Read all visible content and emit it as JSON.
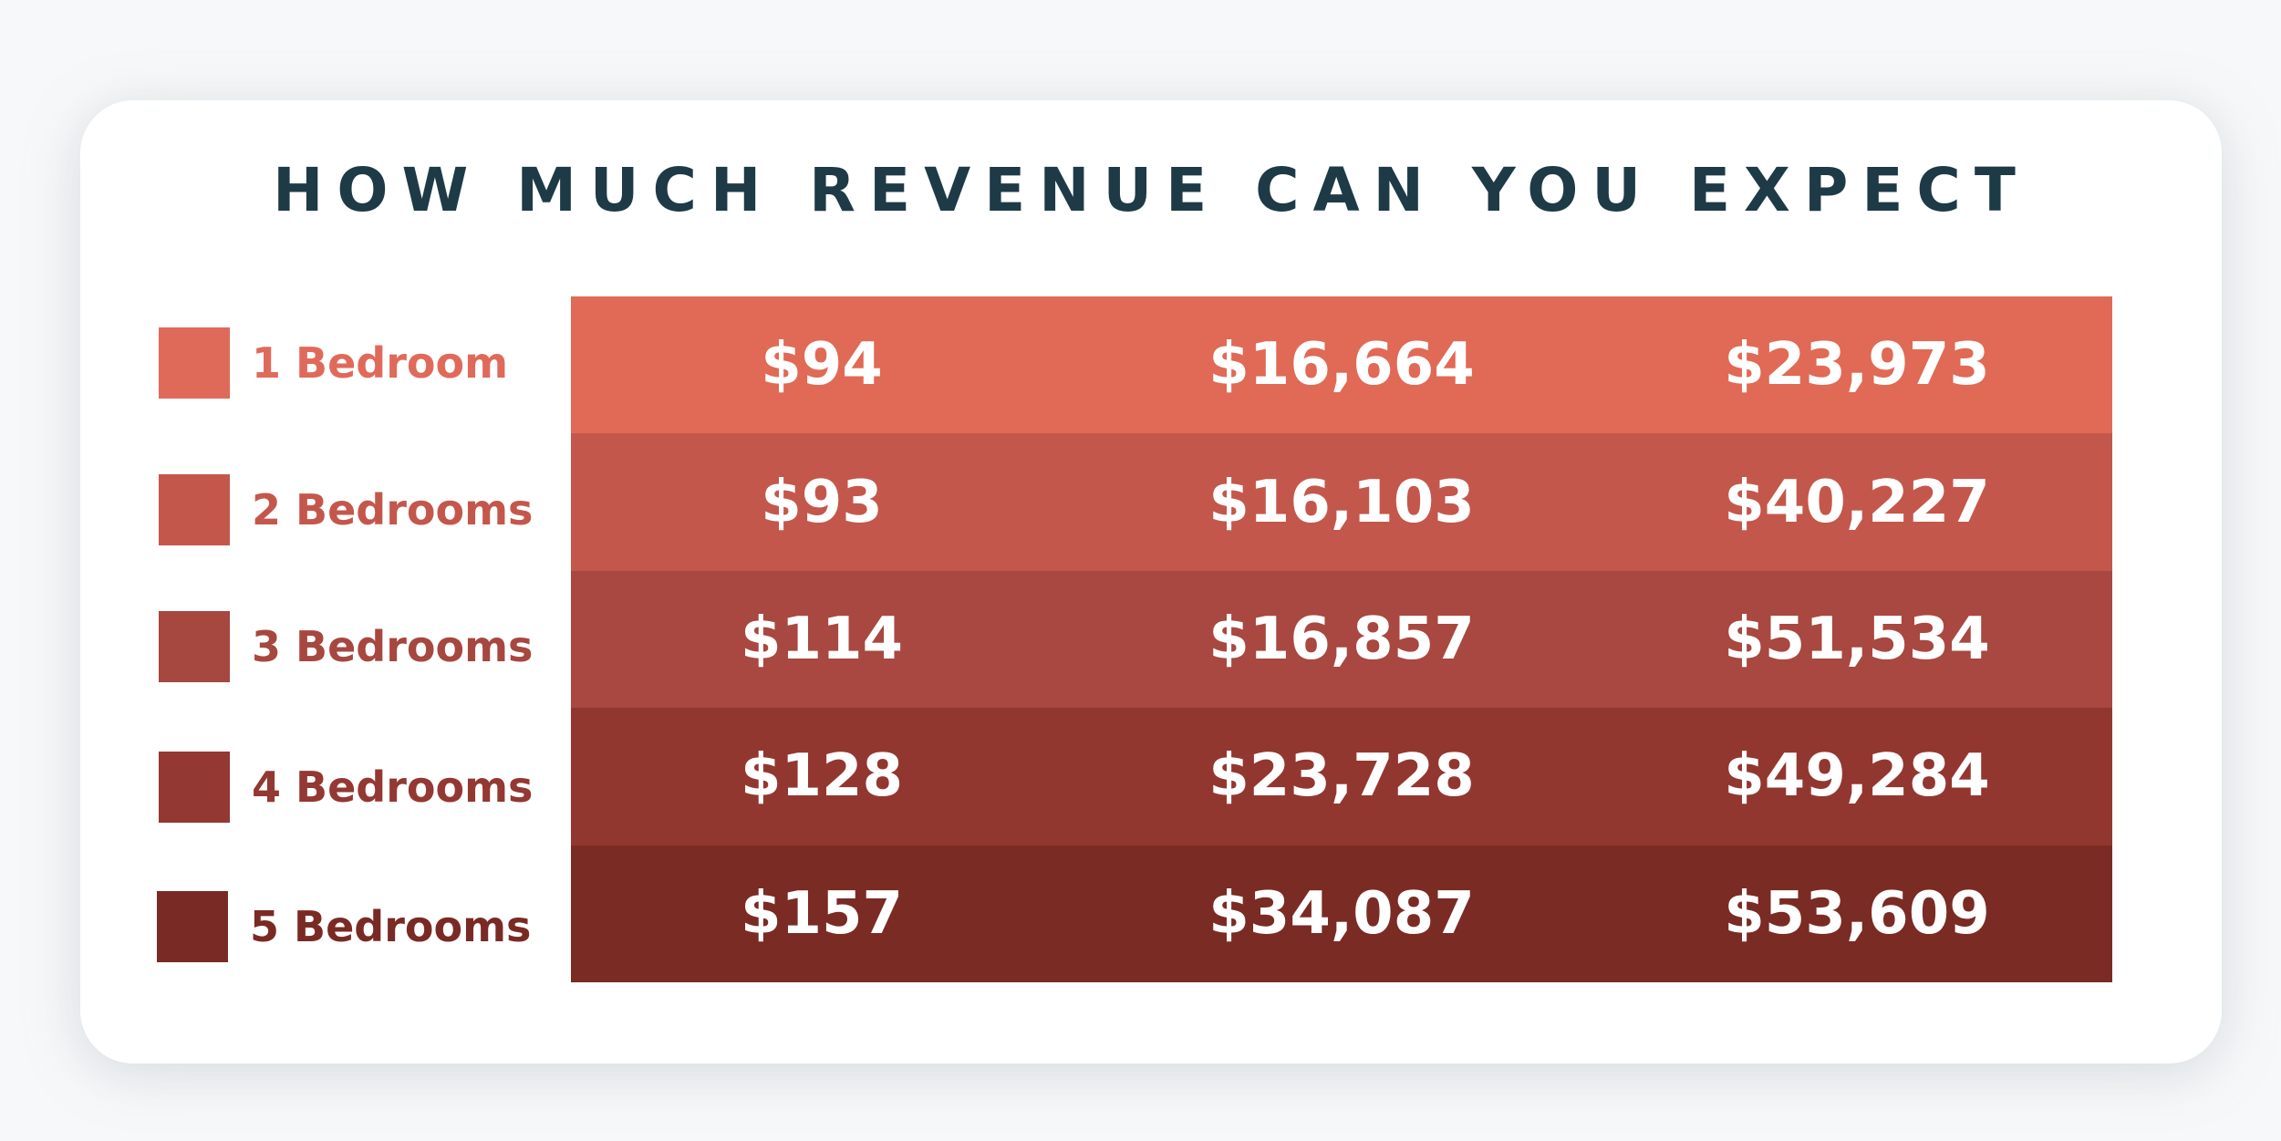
{
  "title": "HOW MUCH REVENUE CAN YOU EXPECT",
  "legend": [
    {
      "label": "1 Bedroom",
      "color": "#e06a5a"
    },
    {
      "label": "2 Bedrooms",
      "color": "#c4574b"
    },
    {
      "label": "3 Bedrooms",
      "color": "#a64740"
    },
    {
      "label": "4 Bedrooms",
      "color": "#933832"
    },
    {
      "label": "5 Bedrooms",
      "color": "#7a2a24"
    }
  ],
  "rows": [
    {
      "cells": [
        "$94",
        "$16,664",
        "$23,973"
      ],
      "color": "#e06a55"
    },
    {
      "cells": [
        "$93",
        "$16,103",
        "$40,227"
      ],
      "color": "#c4574b"
    },
    {
      "cells": [
        "$114",
        "$16,857",
        "$51,534"
      ],
      "color": "#a84840"
    },
    {
      "cells": [
        "$128",
        "$23,728",
        "$49,284"
      ],
      "color": "#923730"
    },
    {
      "cells": [
        "$157",
        "$34,087",
        "$53,609"
      ],
      "color": "#7a2b24"
    }
  ],
  "chart_data": {
    "type": "table",
    "title": "HOW MUCH REVENUE CAN YOU EXPECT",
    "row_labels": [
      "1 Bedroom",
      "2 Bedrooms",
      "3 Bedrooms",
      "4 Bedrooms",
      "5 Bedrooms"
    ],
    "rows": [
      [
        "$94",
        "$16,664",
        "$23,973"
      ],
      [
        "$93",
        "$16,103",
        "$40,227"
      ],
      [
        "$114",
        "$16,857",
        "$51,534"
      ],
      [
        "$128",
        "$23,728",
        "$49,284"
      ],
      [
        "$157",
        "$34,087",
        "$53,609"
      ]
    ]
  }
}
